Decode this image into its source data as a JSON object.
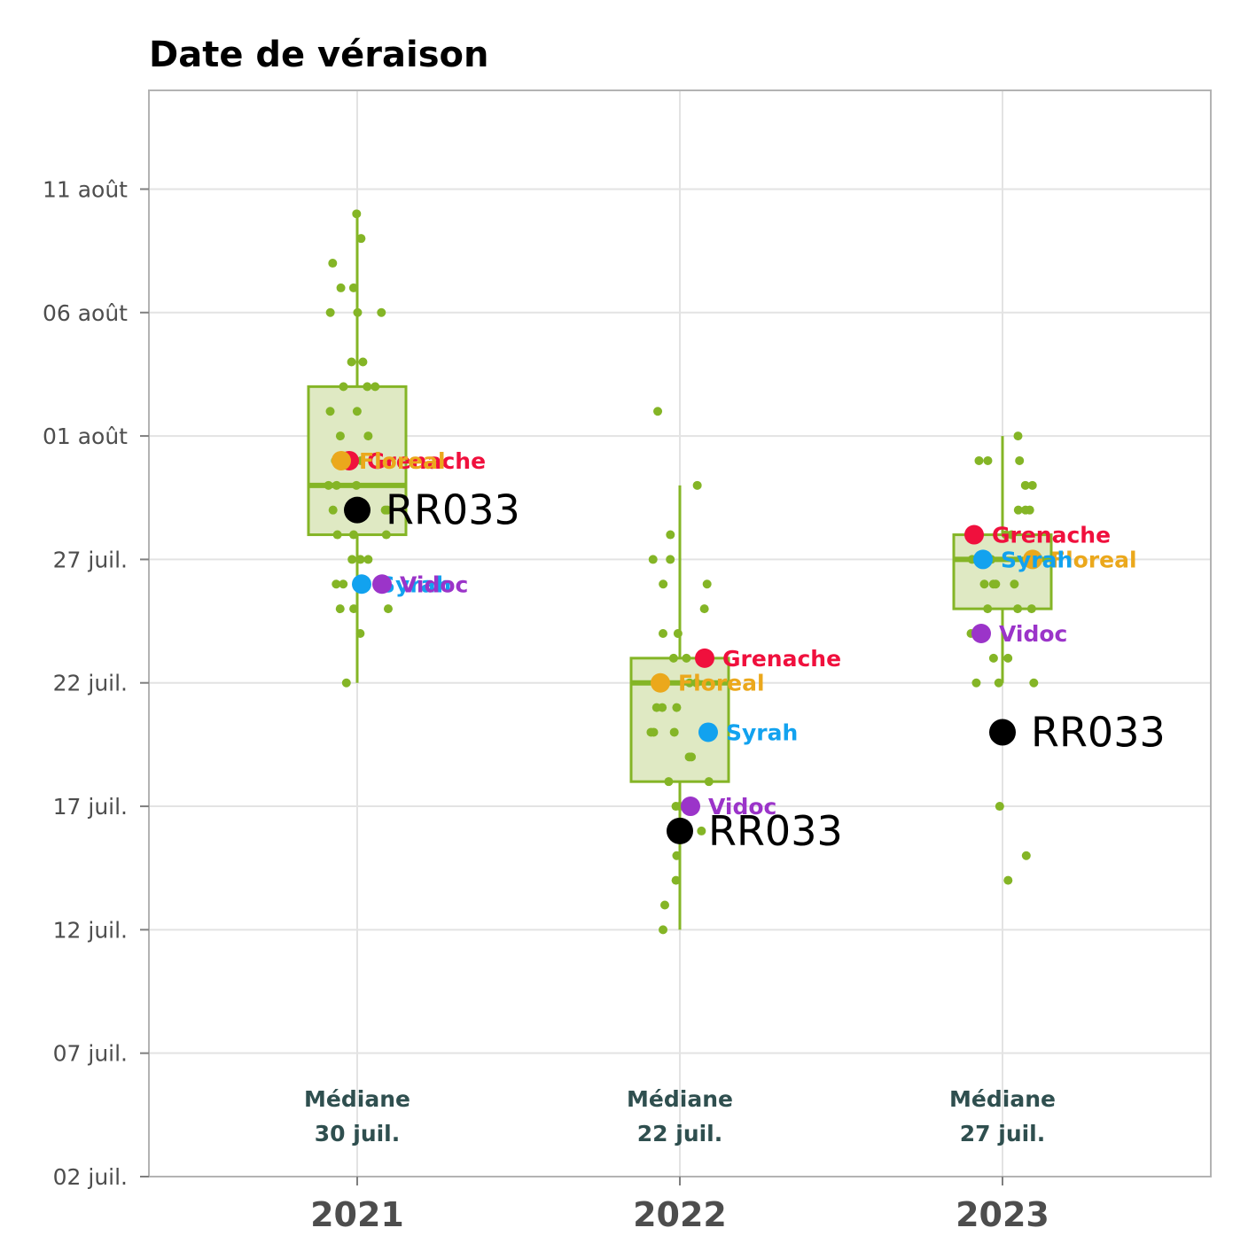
{
  "chart_data": {
    "type": "boxplot",
    "title": "Date de véraison",
    "xlabel": "",
    "ylabel": "",
    "categories": [
      "2021",
      "2022",
      "2023"
    ],
    "y_axis": {
      "type": "date",
      "min": "2023-07-02",
      "max": "2023-08-15",
      "ticks": [
        {
          "value": "2023-07-02",
          "label": "02 juil."
        },
        {
          "value": "2023-07-07",
          "label": "07 juil."
        },
        {
          "value": "2023-07-12",
          "label": "12 juil."
        },
        {
          "value": "2023-07-17",
          "label": "17 juil."
        },
        {
          "value": "2023-07-22",
          "label": "22 juil."
        },
        {
          "value": "2023-07-27",
          "label": "27 juil."
        },
        {
          "value": "2023-08-01",
          "label": "01 août"
        },
        {
          "value": "2023-08-06",
          "label": "06 août"
        },
        {
          "value": "2023-08-11",
          "label": "11 août"
        }
      ]
    },
    "grid": true,
    "colors": {
      "box_stroke": "#84b526",
      "box_fill": "#dfe9c3",
      "points": "#84b526",
      "Grenache": "#f0103d",
      "Floreal": "#eba81c",
      "Syrah": "#12a2ef",
      "Vidoc": "#9b34c9",
      "RR033": "#000000"
    },
    "boxes": [
      {
        "year": "2021",
        "whisker_low": "2023-07-22",
        "q1": "2023-07-28",
        "median": "2023-07-30",
        "q3": "2023-08-03",
        "whisker_high": "2023-08-10"
      },
      {
        "year": "2022",
        "whisker_low": "2023-07-12",
        "q1": "2023-07-18",
        "median": "2023-07-22",
        "q3": "2023-07-23",
        "whisker_high": "2023-07-30"
      },
      {
        "year": "2023",
        "whisker_low": "2023-07-22",
        "q1": "2023-07-25",
        "median": "2023-07-27",
        "q3": "2023-07-28",
        "whisker_high": "2023-08-01"
      }
    ],
    "median_annotations": [
      {
        "year": "2021",
        "line1": "Médiane",
        "line2": "30 juil."
      },
      {
        "year": "2022",
        "line1": "Médiane",
        "line2": "22 juil."
      },
      {
        "year": "2023",
        "line1": "Médiane",
        "line2": "27 juil."
      }
    ],
    "highlighted_varieties": [
      {
        "name": "Grenache",
        "points": [
          {
            "year": "2021",
            "date": "2023-07-31"
          },
          {
            "year": "2022",
            "date": "2023-07-23"
          },
          {
            "year": "2023",
            "date": "2023-07-28"
          }
        ]
      },
      {
        "name": "Floreal",
        "points": [
          {
            "year": "2021",
            "date": "2023-07-31"
          },
          {
            "year": "2022",
            "date": "2023-07-22"
          },
          {
            "year": "2023",
            "date": "2023-07-27"
          }
        ]
      },
      {
        "name": "Syrah",
        "points": [
          {
            "year": "2021",
            "date": "2023-07-26"
          },
          {
            "year": "2022",
            "date": "2023-07-20"
          },
          {
            "year": "2023",
            "date": "2023-07-27"
          }
        ]
      },
      {
        "name": "Vidoc",
        "points": [
          {
            "year": "2021",
            "date": "2023-07-26"
          },
          {
            "year": "2022",
            "date": "2023-07-17"
          },
          {
            "year": "2023",
            "date": "2023-07-24"
          }
        ]
      }
    ],
    "reference_variety": {
      "name": "RR033",
      "points": [
        {
          "year": "2021",
          "date": "2023-07-29"
        },
        {
          "year": "2022",
          "date": "2023-07-16"
        },
        {
          "year": "2023",
          "date": "2023-07-20"
        }
      ]
    },
    "jitter_points": [
      {
        "year": "2021",
        "dates": [
          "2023-08-10",
          "2023-08-09",
          "2023-08-08",
          "2023-08-07",
          "2023-08-07",
          "2023-08-06",
          "2023-08-06",
          "2023-08-06",
          "2023-08-04",
          "2023-08-04",
          "2023-08-03",
          "2023-08-03",
          "2023-08-03",
          "2023-08-02",
          "2023-08-02",
          "2023-08-01",
          "2023-08-01",
          "2023-07-31",
          "2023-07-31",
          "2023-07-30",
          "2023-07-30",
          "2023-07-30",
          "2023-07-29",
          "2023-07-29",
          "2023-07-29",
          "2023-07-28",
          "2023-07-28",
          "2023-07-28",
          "2023-07-27",
          "2023-07-27",
          "2023-07-27",
          "2023-07-26",
          "2023-07-26",
          "2023-07-25",
          "2023-07-25",
          "2023-07-25",
          "2023-07-24",
          "2023-07-22"
        ]
      },
      {
        "year": "2022",
        "dates": [
          "2023-08-02",
          "2023-07-30",
          "2023-07-28",
          "2023-07-27",
          "2023-07-27",
          "2023-07-26",
          "2023-07-26",
          "2023-07-25",
          "2023-07-24",
          "2023-07-24",
          "2023-07-23",
          "2023-07-23",
          "2023-07-22",
          "2023-07-22",
          "2023-07-21",
          "2023-07-21",
          "2023-07-21",
          "2023-07-20",
          "2023-07-20",
          "2023-07-20",
          "2023-07-19",
          "2023-07-19",
          "2023-07-18",
          "2023-07-18",
          "2023-07-17",
          "2023-07-17",
          "2023-07-16",
          "2023-07-16",
          "2023-07-15",
          "2023-07-14",
          "2023-07-13",
          "2023-07-12"
        ]
      },
      {
        "year": "2023",
        "dates": [
          "2023-08-01",
          "2023-07-31",
          "2023-07-31",
          "2023-07-31",
          "2023-07-30",
          "2023-07-30",
          "2023-07-29",
          "2023-07-29",
          "2023-07-29",
          "2023-07-28",
          "2023-07-28",
          "2023-07-27",
          "2023-07-27",
          "2023-07-26",
          "2023-07-26",
          "2023-07-26",
          "2023-07-26",
          "2023-07-25",
          "2023-07-25",
          "2023-07-25",
          "2023-07-24",
          "2023-07-23",
          "2023-07-23",
          "2023-07-22",
          "2023-07-22",
          "2023-07-22",
          "2023-07-17",
          "2023-07-15",
          "2023-07-14"
        ]
      }
    ]
  }
}
